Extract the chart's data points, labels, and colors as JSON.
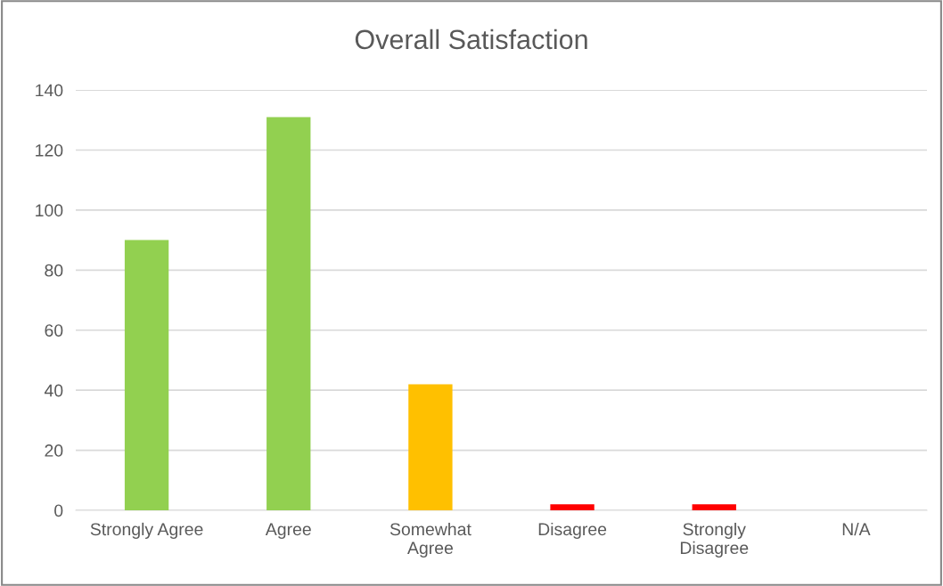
{
  "chart_data": {
    "type": "bar",
    "title": "Overall Satisfaction",
    "categories": [
      "Strongly Agree",
      "Agree",
      "Somewhat\nAgree",
      "Disagree",
      "Strongly\nDisagree",
      "N/A"
    ],
    "values": [
      90,
      131,
      42,
      2,
      2,
      0
    ],
    "colors": [
      "#92d050",
      "#92d050",
      "#ffc000",
      "#ff0000",
      "#ff0000",
      "#ff0000"
    ],
    "ylim": [
      0,
      140
    ],
    "yticks": [
      0,
      20,
      40,
      60,
      80,
      100,
      120,
      140
    ],
    "grid": "y",
    "legend": false
  }
}
